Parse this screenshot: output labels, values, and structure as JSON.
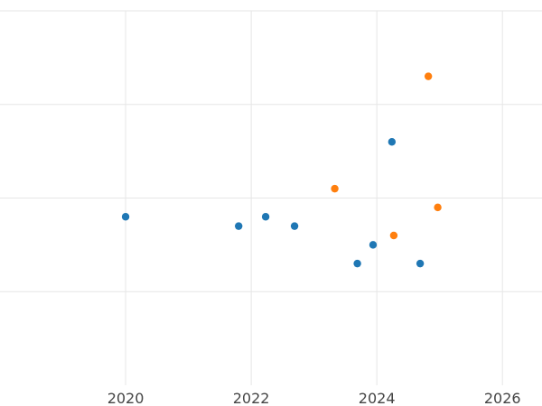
{
  "chart_data": {
    "type": "scatter",
    "title": "",
    "xlabel": "",
    "ylabel": "",
    "grid": true,
    "x_ticks": [
      2020,
      2022,
      2024,
      2026
    ],
    "xlim": [
      2018.0,
      2026.63
    ],
    "ylim": [
      -2.0,
      2.0
    ],
    "y_gridlines": [
      -1,
      0,
      1,
      2
    ],
    "series": [
      {
        "color": "#1f77b4",
        "points": [
          {
            "x": 2020.0,
            "y": -0.2
          },
          {
            "x": 2021.8,
            "y": -0.3
          },
          {
            "x": 2022.23,
            "y": -0.2
          },
          {
            "x": 2022.69,
            "y": -0.3
          },
          {
            "x": 2023.69,
            "y": -0.7
          },
          {
            "x": 2023.94,
            "y": -0.5
          },
          {
            "x": 2024.24,
            "y": 0.6
          },
          {
            "x": 2024.69,
            "y": -0.7
          }
        ]
      },
      {
        "color": "#ff7f0e",
        "points": [
          {
            "x": 2023.33,
            "y": 0.1
          },
          {
            "x": 2024.27,
            "y": -0.4
          },
          {
            "x": 2024.82,
            "y": 1.3
          },
          {
            "x": 2024.97,
            "y": -0.1
          }
        ]
      }
    ]
  }
}
